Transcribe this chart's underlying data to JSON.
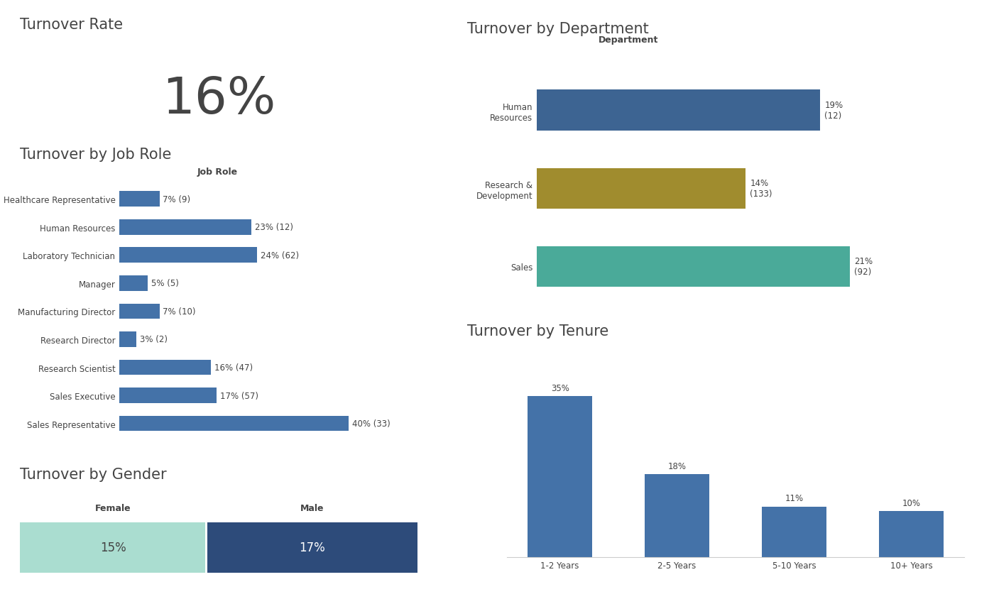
{
  "turnover_rate": "16%",
  "job_roles": [
    "Healthcare Representative",
    "Human Resources",
    "Laboratory Technician",
    "Manager",
    "Manufacturing Director",
    "Research Director",
    "Research Scientist",
    "Sales Executive",
    "Sales Representative"
  ],
  "job_role_values": [
    7,
    23,
    24,
    5,
    7,
    3,
    16,
    17,
    40
  ],
  "job_role_counts": [
    9,
    12,
    62,
    5,
    10,
    2,
    47,
    57,
    33
  ],
  "job_role_color": "#4472a8",
  "departments": [
    "Human\nResources",
    "Research &\nDevelopment",
    "Sales"
  ],
  "dept_values": [
    19,
    14,
    21
  ],
  "dept_counts": [
    12,
    133,
    92
  ],
  "dept_colors": [
    "#3d6492",
    "#a08c2e",
    "#4aaa99"
  ],
  "dept_label": "Department",
  "tenure_categories": [
    "1-2 Years",
    "2-5 Years",
    "5-10 Years",
    "10+ Years"
  ],
  "tenure_values": [
    35,
    18,
    11,
    10
  ],
  "tenure_color": "#4472a8",
  "gender_labels": [
    "Female",
    "Male"
  ],
  "gender_values": [
    15,
    17
  ],
  "gender_colors": [
    "#aaddd0",
    "#2d4b7a"
  ],
  "title_rate": "Turnover Rate",
  "title_jobrole": "Turnover by Job Role",
  "title_dept": "Turnover by Department",
  "title_tenure": "Turnover by Tenure",
  "title_gender": "Turnover by Gender",
  "bg_color": "#ffffff",
  "text_color": "#444444",
  "title_fontsize": 15,
  "label_fontsize": 8.5,
  "rate_fontsize": 52
}
